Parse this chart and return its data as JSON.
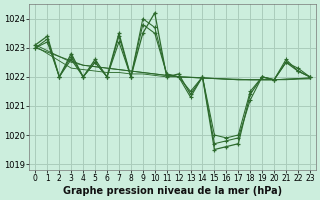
{
  "title": "Graphe pression niveau de la mer (hPa)",
  "background_color": "#cceedd",
  "grid_color": "#aaccbb",
  "line_color": "#2d6a2d",
  "xlim": [
    -0.5,
    23.5
  ],
  "ylim": [
    1018.8,
    1024.5
  ],
  "yticks": [
    1019,
    1020,
    1021,
    1022,
    1023,
    1024
  ],
  "xticks": [
    0,
    1,
    2,
    3,
    4,
    5,
    6,
    7,
    8,
    9,
    10,
    11,
    12,
    13,
    14,
    15,
    16,
    17,
    18,
    19,
    20,
    21,
    22,
    23
  ],
  "series": {
    "zigzag1": [
      1023.1,
      1023.4,
      1022.0,
      1022.8,
      1022.0,
      1022.6,
      1022.0,
      1023.5,
      1022.0,
      1023.5,
      1024.2,
      1022.0,
      1022.1,
      1021.4,
      1022.0,
      1019.5,
      1019.6,
      1019.7,
      1021.4,
      1022.0,
      1021.9,
      1022.5,
      1022.2,
      1022.0
    ],
    "zigzag2": [
      1023.0,
      1023.2,
      1022.0,
      1022.6,
      1022.0,
      1022.5,
      1022.0,
      1023.2,
      1022.0,
      1023.8,
      1023.5,
      1022.1,
      1022.0,
      1021.5,
      1022.0,
      1020.0,
      1019.9,
      1020.0,
      1021.5,
      1022.0,
      1021.9,
      1022.5,
      1022.3,
      1022.0
    ],
    "zigzag3": [
      1023.0,
      1023.3,
      1022.0,
      1022.7,
      1022.0,
      1022.5,
      1022.0,
      1023.4,
      1022.0,
      1024.0,
      1023.7,
      1022.1,
      1022.0,
      1021.3,
      1022.0,
      1019.7,
      1019.8,
      1019.9,
      1021.2,
      1022.0,
      1021.9,
      1022.6,
      1022.2,
      1022.0
    ],
    "trend1": [
      1023.0,
      1022.85,
      1022.7,
      1022.55,
      1022.4,
      1022.35,
      1022.3,
      1022.25,
      1022.2,
      1022.15,
      1022.1,
      1022.05,
      1022.0,
      1021.98,
      1021.96,
      1021.94,
      1021.92,
      1021.9,
      1021.9,
      1021.9,
      1021.9,
      1021.92,
      1021.94,
      1021.96
    ],
    "trend2": [
      1023.1,
      1022.9,
      1022.7,
      1022.5,
      1022.4,
      1022.35,
      1022.3,
      1022.25,
      1022.2,
      1022.15,
      1022.1,
      1022.05,
      1022.0,
      1021.98,
      1021.96,
      1021.94,
      1021.92,
      1021.9,
      1021.9,
      1021.9,
      1021.9,
      1021.92,
      1021.94,
      1021.96
    ],
    "trend3": [
      1023.05,
      1022.8,
      1022.55,
      1022.3,
      1022.25,
      1022.2,
      1022.15,
      1022.15,
      1022.1,
      1022.1,
      1022.05,
      1022.0,
      1022.0,
      1021.99,
      1021.97,
      1021.95,
      1021.93,
      1021.92,
      1021.9,
      1021.9,
      1021.9,
      1021.9,
      1021.92,
      1021.93
    ]
  },
  "marker_size": 3.5,
  "linewidth": 0.9
}
